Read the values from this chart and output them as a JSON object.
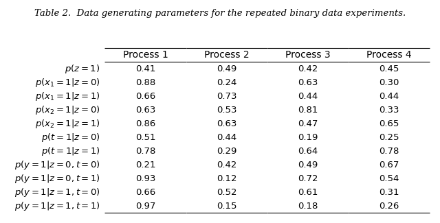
{
  "title": "Table 2.  Data generating parameters for the repeated binary data experiments.",
  "col_headers": [
    "",
    "Process 1",
    "Process 2",
    "Process 3",
    "Process 4"
  ],
  "rows": [
    [
      "$p(z = 1)$",
      "0.41",
      "0.49",
      "0.42",
      "0.45"
    ],
    [
      "$p(x_1 = 1|z = 0)$",
      "0.88",
      "0.24",
      "0.63",
      "0.30"
    ],
    [
      "$p(x_1 = 1|z = 1)$",
      "0.66",
      "0.73",
      "0.44",
      "0.44"
    ],
    [
      "$p(x_2 = 1|z = 0)$",
      "0.63",
      "0.53",
      "0.81",
      "0.33"
    ],
    [
      "$p(x_2 = 1|z = 1)$",
      "0.86",
      "0.63",
      "0.47",
      "0.65"
    ],
    [
      "$p(t = 1|z = 0)$",
      "0.51",
      "0.44",
      "0.19",
      "0.25"
    ],
    [
      "$p(t = 1|z = 1)$",
      "0.78",
      "0.29",
      "0.64",
      "0.78"
    ],
    [
      "$p(y = 1|z = 0, t = 0)$",
      "0.21",
      "0.42",
      "0.49",
      "0.67"
    ],
    [
      "$p(y = 1|z = 0, t = 1)$",
      "0.93",
      "0.12",
      "0.72",
      "0.54"
    ],
    [
      "$p(y = 1|z = 1, t = 0)$",
      "0.66",
      "0.52",
      "0.61",
      "0.31"
    ],
    [
      "$p(y = 1|z = 1, t = 1)$",
      "0.97",
      "0.15",
      "0.18",
      "0.26"
    ]
  ],
  "row_align": [
    "right",
    "center",
    "center",
    "center",
    "center"
  ],
  "fig_width": 6.4,
  "fig_height": 3.25,
  "dpi": 100
}
